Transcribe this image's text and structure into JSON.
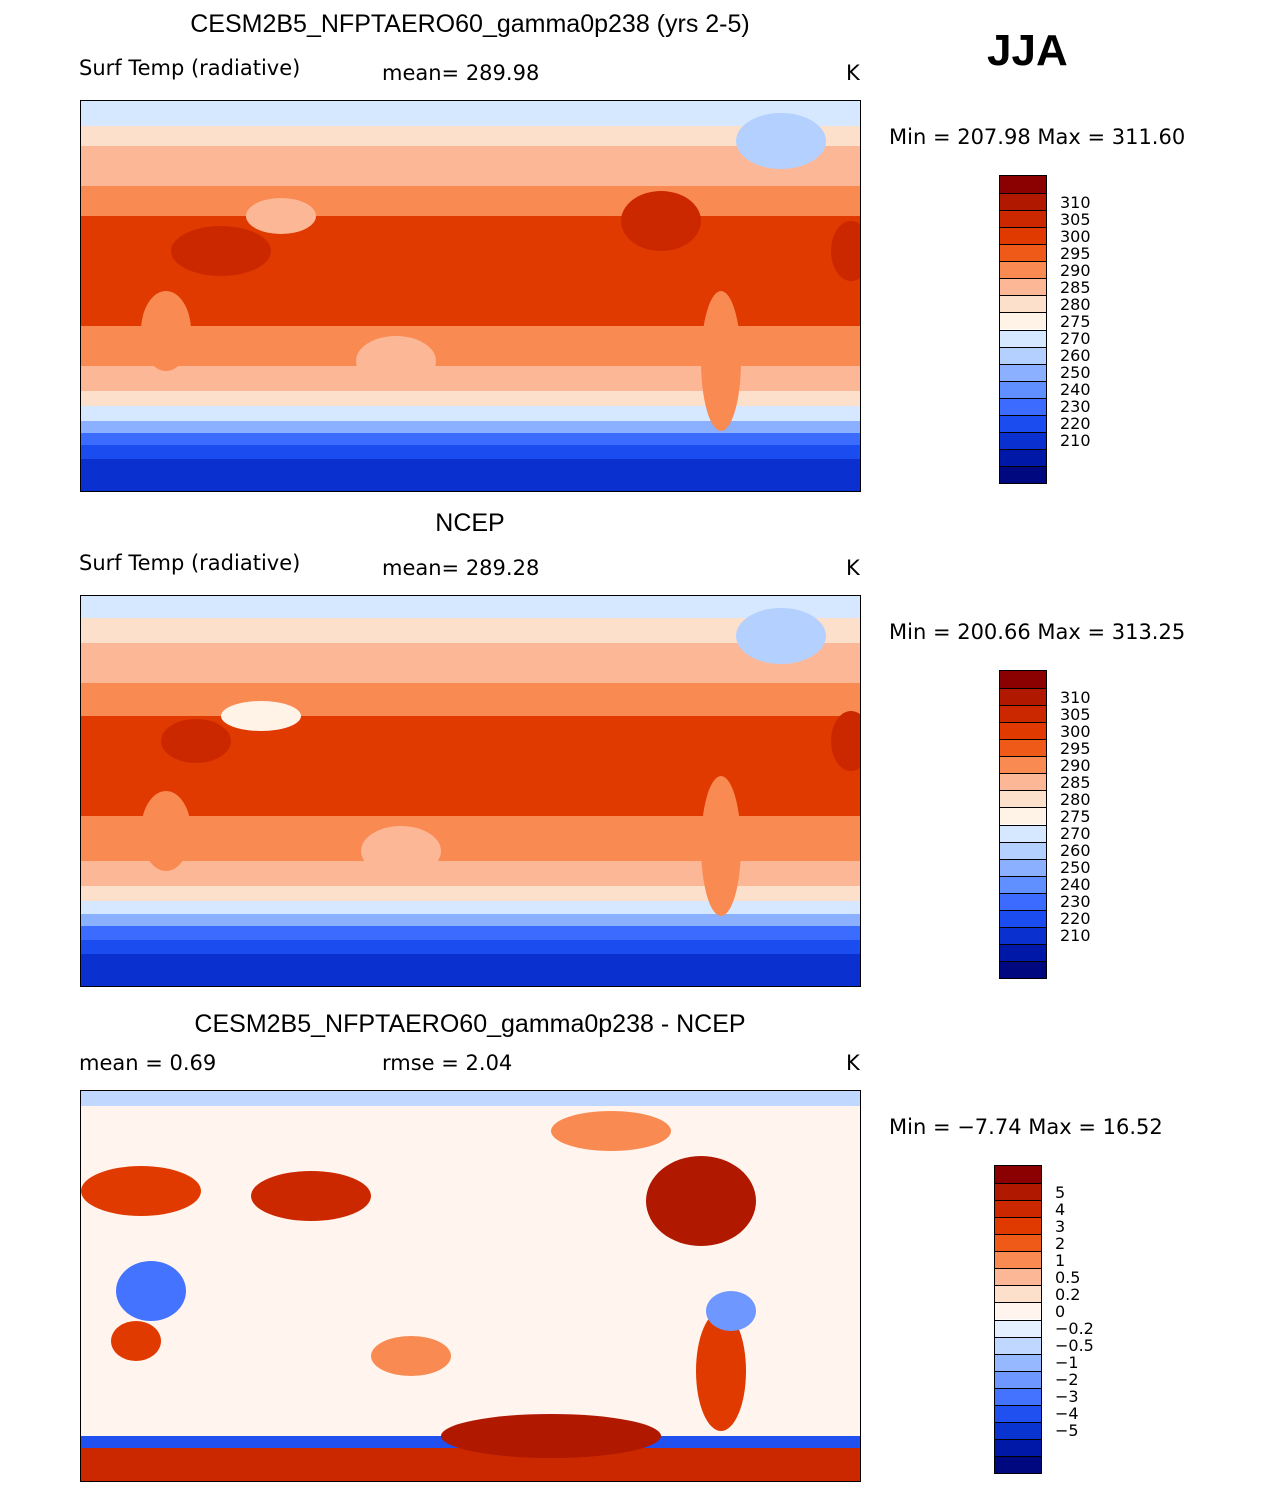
{
  "season": "JJA",
  "panels": [
    {
      "title": "CESM2B5_NFPTAERO60_gamma0p238 (yrs 2-5)",
      "left": "Surf Temp (radiative)",
      "mid": "mean= 289.98",
      "units": "K",
      "minmax": "Min = 207.98 Max = 311.60",
      "palette": [
        "#8b0000",
        "#b01800",
        "#cc2800",
        "#e03a00",
        "#f05a18",
        "#f98a52",
        "#fcb896",
        "#fde0cc",
        "#fff2e6",
        "#d6e8ff",
        "#b4d0ff",
        "#8ab0ff",
        "#6090ff",
        "#3c6cff",
        "#1a4cf0",
        "#0a30d0",
        "#0018a8",
        "#000880"
      ],
      "ticks": [
        "310",
        "305",
        "300",
        "295",
        "290",
        "285",
        "280",
        "275",
        "270",
        "260",
        "250",
        "240",
        "230",
        "220",
        "210"
      ],
      "kind": "clim"
    },
    {
      "title": "NCEP",
      "left": "Surf Temp (radiative)",
      "mid": "mean= 289.28",
      "units": "K",
      "minmax": "Min = 200.66 Max = 313.25",
      "palette": [
        "#8b0000",
        "#b01800",
        "#cc2800",
        "#e03a00",
        "#f05a18",
        "#f98a52",
        "#fcb896",
        "#fde0cc",
        "#fff2e6",
        "#d6e8ff",
        "#b4d0ff",
        "#8ab0ff",
        "#6090ff",
        "#3c6cff",
        "#1a4cf0",
        "#0a30d0",
        "#0018a8",
        "#000880"
      ],
      "ticks": [
        "310",
        "305",
        "300",
        "295",
        "290",
        "285",
        "280",
        "275",
        "270",
        "260",
        "250",
        "240",
        "230",
        "220",
        "210"
      ],
      "kind": "clim"
    },
    {
      "title": "CESM2B5_NFPTAERO60_gamma0p238 - NCEP",
      "left": "mean =    0.69",
      "mid": "rmse =    2.04",
      "units": "K",
      "minmax": "Min =   −7.74 Max =   16.52",
      "palette": [
        "#8b0000",
        "#b01800",
        "#cc2800",
        "#e03a00",
        "#f05a18",
        "#f98a52",
        "#fcb896",
        "#fde0cc",
        "#fff4ee",
        "#e4f0ff",
        "#c0d8ff",
        "#96b8ff",
        "#6e98ff",
        "#4474ff",
        "#2050f0",
        "#0a34d0",
        "#0018a8",
        "#000880"
      ],
      "ticks": [
        "5",
        "4",
        "3",
        "2",
        "1",
        "0.5",
        "0.2",
        "0",
        "−0.2",
        "−0.5",
        "−1",
        "−2",
        "−3",
        "−4",
        "−5"
      ],
      "kind": "diff"
    }
  ]
}
